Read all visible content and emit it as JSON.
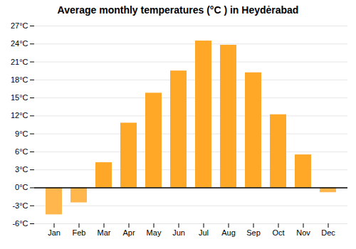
{
  "chart_data": {
    "type": "bar",
    "title": "Average monthly temperatures (°C ) in Heydėrabad",
    "categories": [
      "Jan",
      "Feb",
      "Mar",
      "Apr",
      "May",
      "Jun",
      "Jul",
      "Aug",
      "Sep",
      "Oct",
      "Nov",
      "Dec"
    ],
    "values": [
      -4.5,
      -2.5,
      4.2,
      10.8,
      15.8,
      19.5,
      24.5,
      23.8,
      19.2,
      12.2,
      5.5,
      -0.8
    ],
    "colors": [
      "#FFB74D",
      "#FFB74D",
      "#FFA726",
      "#FFA726",
      "#FFA726",
      "#FFA726",
      "#FFA726",
      "#FFA726",
      "#FFA726",
      "#FFA726",
      "#FFA726",
      "#FFB74D"
    ],
    "ylim": [
      -6,
      27
    ],
    "yticks": [
      {
        "value": -6,
        "label": "-6°C"
      },
      {
        "value": -3,
        "label": "-3°C"
      },
      {
        "value": 0,
        "label": "0°C"
      },
      {
        "value": 3,
        "label": "3°C"
      },
      {
        "value": 6,
        "label": "6°C"
      },
      {
        "value": 9,
        "label": "9°C"
      },
      {
        "value": 12,
        "label": "12°C"
      },
      {
        "value": 15,
        "label": "15°C"
      },
      {
        "value": 18,
        "label": "18°C"
      },
      {
        "value": 21,
        "label": "21°C"
      },
      {
        "value": 24,
        "label": "24°C"
      },
      {
        "value": 27,
        "label": "27°C"
      }
    ],
    "grid": true
  }
}
